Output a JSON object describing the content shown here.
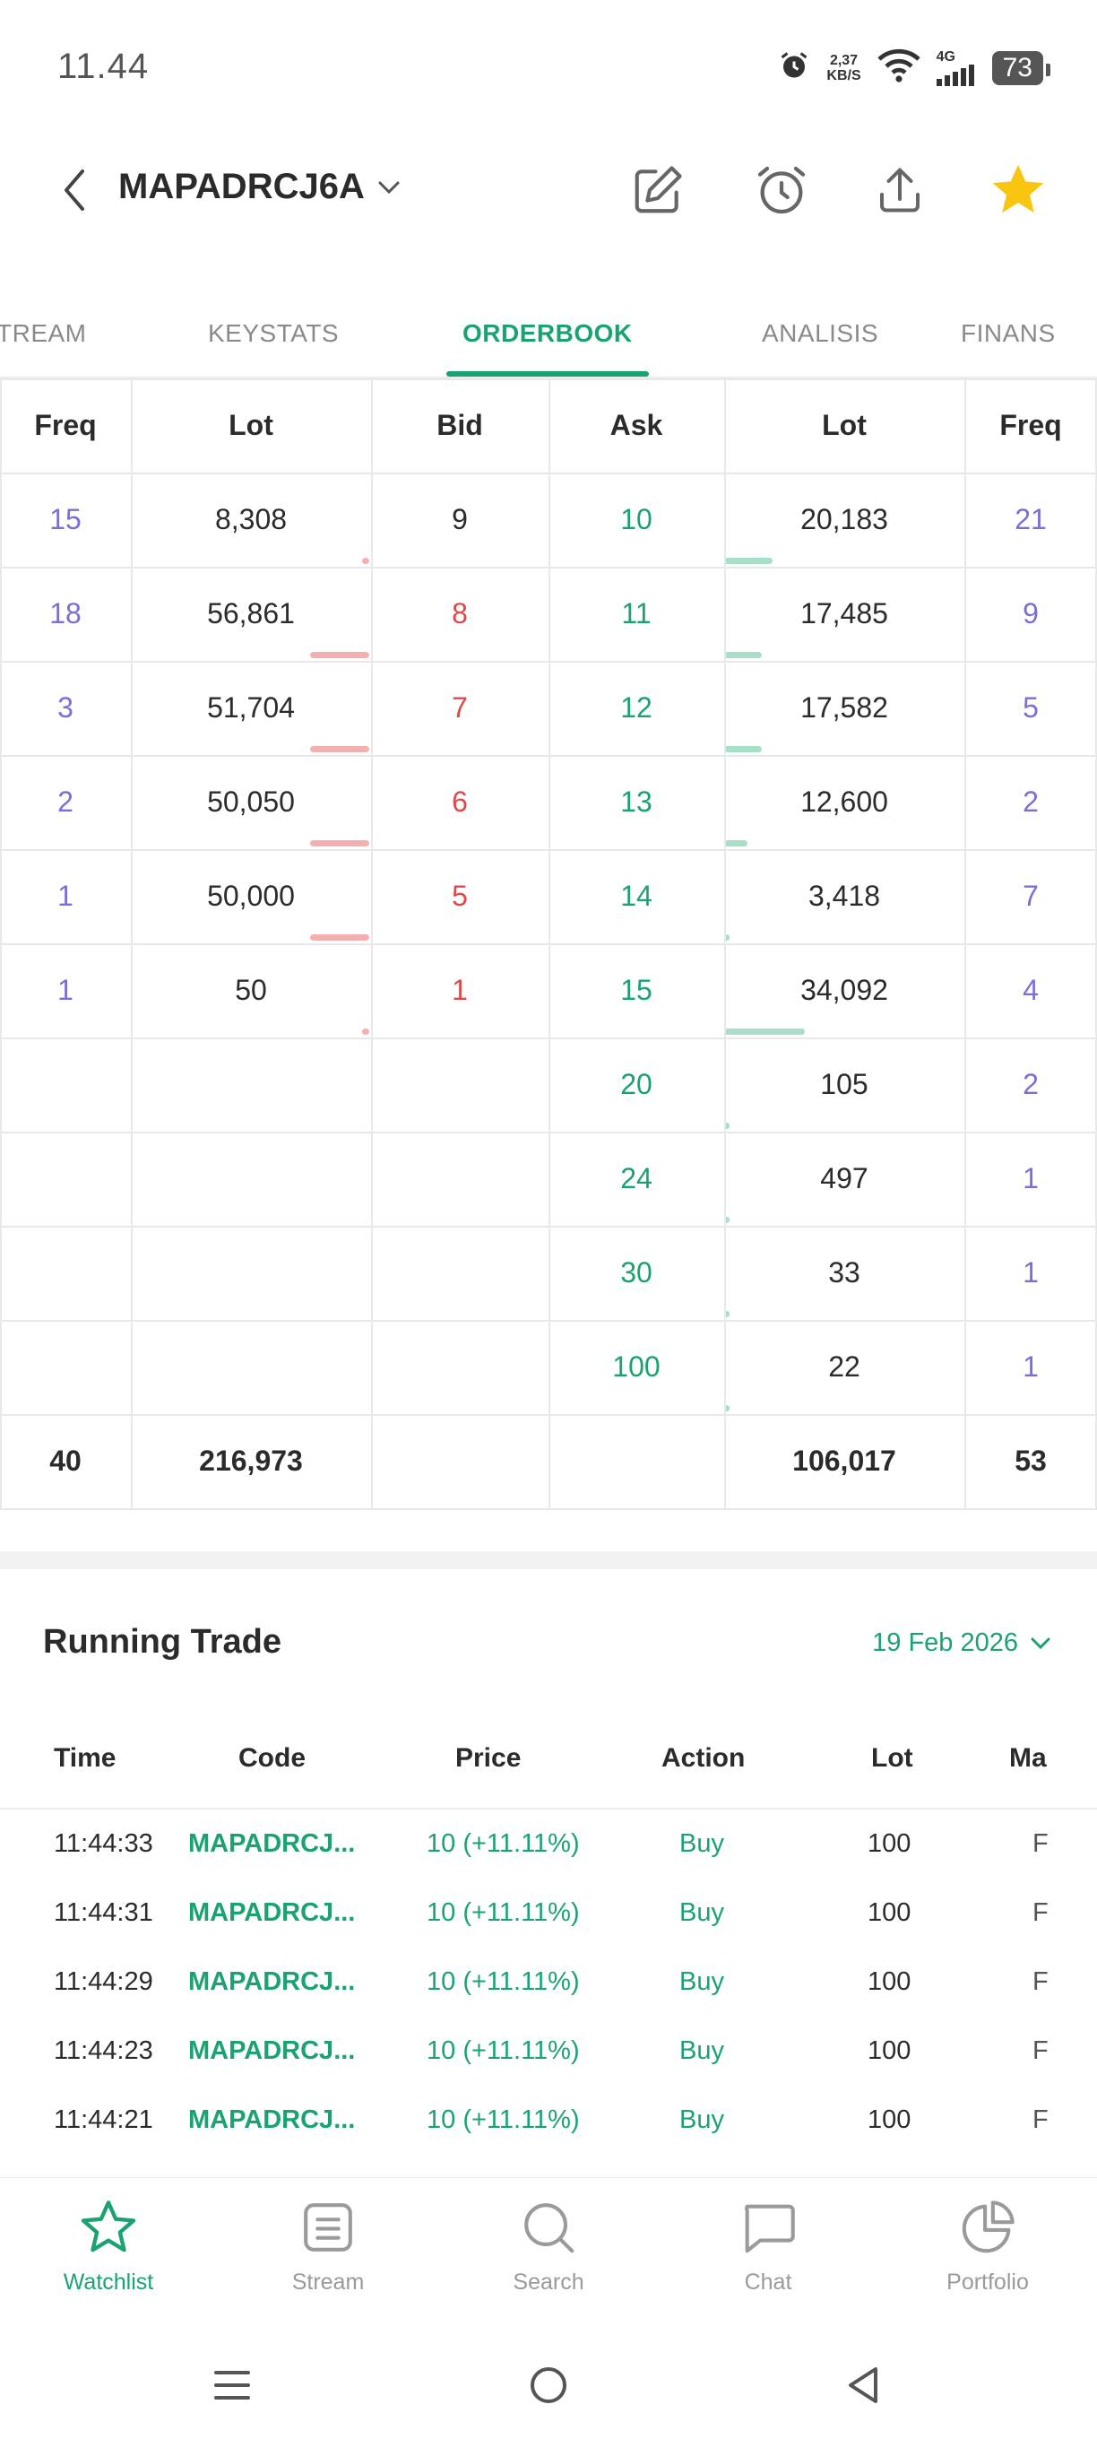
{
  "status_bar": {
    "time": "11.44",
    "net_speed_value": "2,37",
    "net_speed_unit": "KB/S",
    "network": "4G",
    "battery": "73"
  },
  "header": {
    "stock_code": "MAPADRCJ6A",
    "icons": [
      "back-icon",
      "chevron-down-icon",
      "edit-icon",
      "alarm-icon",
      "share-icon",
      "star-icon"
    ],
    "favorite_color": "#f9c511"
  },
  "tabs": [
    {
      "label": "TREAM"
    },
    {
      "label": "KEYSTATS"
    },
    {
      "label": "ORDERBOOK",
      "active": true
    },
    {
      "label": "ANALISIS"
    },
    {
      "label": "FINANS"
    }
  ],
  "orderbook": {
    "headers": {
      "freq_bid": "Freq",
      "lot_bid": "Lot",
      "bid": "Bid",
      "ask": "Ask",
      "lot_ask": "Lot",
      "freq_ask": "Freq"
    },
    "rows": [
      {
        "bid_freq": "15",
        "bid_lot": "8,308",
        "bid": "9",
        "ask": "10",
        "ask_lot": "20,183",
        "ask_freq": "21",
        "bid_bar": 0.05,
        "ask_bar": 0.45
      },
      {
        "bid_freq": "18",
        "bid_lot": "56,861",
        "bid": "8",
        "ask": "11",
        "ask_lot": "17,485",
        "ask_freq": "9",
        "bid_bar": 0.55,
        "ask_bar": 0.35
      },
      {
        "bid_freq": "3",
        "bid_lot": "51,704",
        "bid": "7",
        "ask": "12",
        "ask_lot": "17,582",
        "ask_freq": "5",
        "bid_bar": 0.55,
        "ask_bar": 0.35
      },
      {
        "bid_freq": "2",
        "bid_lot": "50,050",
        "bid": "6",
        "ask": "13",
        "ask_lot": "12,600",
        "ask_freq": "2",
        "bid_bar": 0.55,
        "ask_bar": 0.22
      },
      {
        "bid_freq": "1",
        "bid_lot": "50,000",
        "bid": "5",
        "ask": "14",
        "ask_lot": "3,418",
        "ask_freq": "7",
        "bid_bar": 0.55,
        "ask_bar": 0.03
      },
      {
        "bid_freq": "1",
        "bid_lot": "50",
        "bid": "1",
        "ask": "15",
        "ask_lot": "34,092",
        "ask_freq": "4",
        "bid_bar": 0.03,
        "ask_bar": 0.75
      },
      {
        "bid_freq": "",
        "bid_lot": "",
        "bid": "",
        "ask": "20",
        "ask_lot": "105",
        "ask_freq": "2",
        "bid_bar": 0,
        "ask_bar": 0.02
      },
      {
        "bid_freq": "",
        "bid_lot": "",
        "bid": "",
        "ask": "24",
        "ask_lot": "497",
        "ask_freq": "1",
        "bid_bar": 0,
        "ask_bar": 0.02
      },
      {
        "bid_freq": "",
        "bid_lot": "",
        "bid": "",
        "ask": "30",
        "ask_lot": "33",
        "ask_freq": "1",
        "bid_bar": 0,
        "ask_bar": 0.02
      },
      {
        "bid_freq": "",
        "bid_lot": "",
        "bid": "",
        "ask": "100",
        "ask_lot": "22",
        "ask_freq": "1",
        "bid_bar": 0,
        "ask_bar": 0.02
      }
    ],
    "totals": {
      "bid_freq": "40",
      "bid_lot": "216,973",
      "ask_lot": "106,017",
      "ask_freq": "53"
    },
    "colors": {
      "bid": "#e04848",
      "ask": "#1aa371",
      "freq": "#7a6fd6"
    }
  },
  "running_trade": {
    "title": "Running Trade",
    "date": "19 Feb 2026",
    "headers": {
      "time": "Time",
      "code": "Code",
      "price": "Price",
      "action": "Action",
      "lot": "Lot",
      "ma": "Ma"
    },
    "rows": [
      {
        "time": "11:44:33",
        "code": "MAPADRCJ...",
        "price": "10 (+11.11%)",
        "action": "Buy",
        "lot": "100",
        "ma": "F"
      },
      {
        "time": "11:44:31",
        "code": "MAPADRCJ...",
        "price": "10 (+11.11%)",
        "action": "Buy",
        "lot": "100",
        "ma": "F"
      },
      {
        "time": "11:44:29",
        "code": "MAPADRCJ...",
        "price": "10 (+11.11%)",
        "action": "Buy",
        "lot": "100",
        "ma": "F"
      },
      {
        "time": "11:44:23",
        "code": "MAPADRCJ...",
        "price": "10 (+11.11%)",
        "action": "Buy",
        "lot": "100",
        "ma": "F"
      },
      {
        "time": "11:44:21",
        "code": "MAPADRCJ...",
        "price": "10 (+11.11%)",
        "action": "Buy",
        "lot": "100",
        "ma": "F"
      }
    ]
  },
  "bottom_nav": [
    {
      "label": "Watchlist",
      "icon": "star-outline-icon",
      "active": true
    },
    {
      "label": "Stream",
      "icon": "stream-icon"
    },
    {
      "label": "Search",
      "icon": "search-icon"
    },
    {
      "label": "Chat",
      "icon": "chat-icon"
    },
    {
      "label": "Portfolio",
      "icon": "pie-chart-icon"
    }
  ],
  "system_nav": [
    "menu-icon",
    "home-icon",
    "back-triangle-icon"
  ],
  "accent_color": "#1aa371"
}
